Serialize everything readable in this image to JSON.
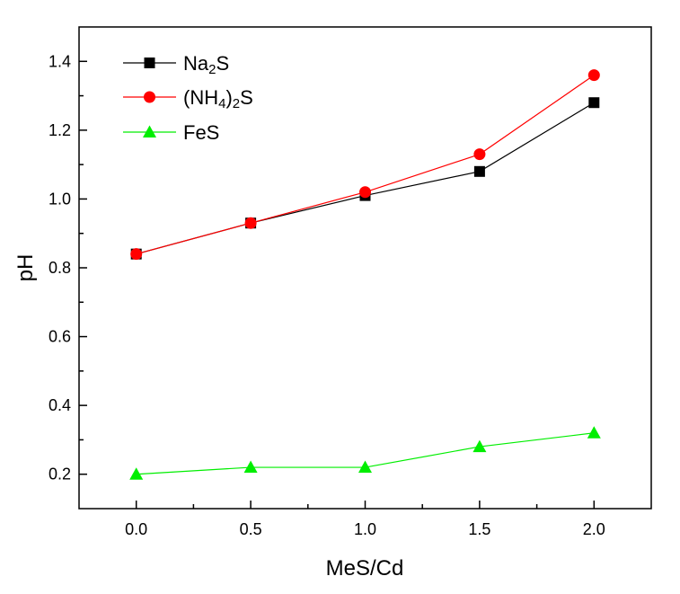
{
  "chart_data": {
    "type": "line",
    "title": "",
    "xlabel": "MeS/Cd",
    "ylabel": "pH",
    "xlim": [
      -0.25,
      2.25
    ],
    "ylim": [
      0.1,
      1.5
    ],
    "x": [
      0.0,
      0.5,
      1.0,
      1.5,
      2.0
    ],
    "xticks": [
      "0.0",
      "0.5",
      "1.0",
      "1.5",
      "2.0"
    ],
    "yticks": [
      "0.2",
      "0.4",
      "0.6",
      "0.8",
      "1.0",
      "1.2",
      "1.4"
    ],
    "grid": false,
    "legend_position": "top-left",
    "series": [
      {
        "name": "Na2S",
        "name_parts": [
          "Na",
          "2",
          "S"
        ],
        "color": "#000000",
        "marker": "square",
        "values": [
          0.84,
          0.93,
          1.01,
          1.08,
          1.28
        ]
      },
      {
        "name": "(NH4)2S",
        "name_parts": [
          "(NH",
          "4",
          ")",
          "2",
          "S"
        ],
        "color": "#ff0000",
        "marker": "circle",
        "values": [
          0.84,
          0.93,
          1.02,
          1.13,
          1.36
        ]
      },
      {
        "name": "FeS",
        "name_parts": [
          "FeS"
        ],
        "color": "#00ee00",
        "marker": "triangle",
        "values": [
          0.2,
          0.22,
          0.22,
          0.28,
          0.32
        ]
      }
    ]
  }
}
